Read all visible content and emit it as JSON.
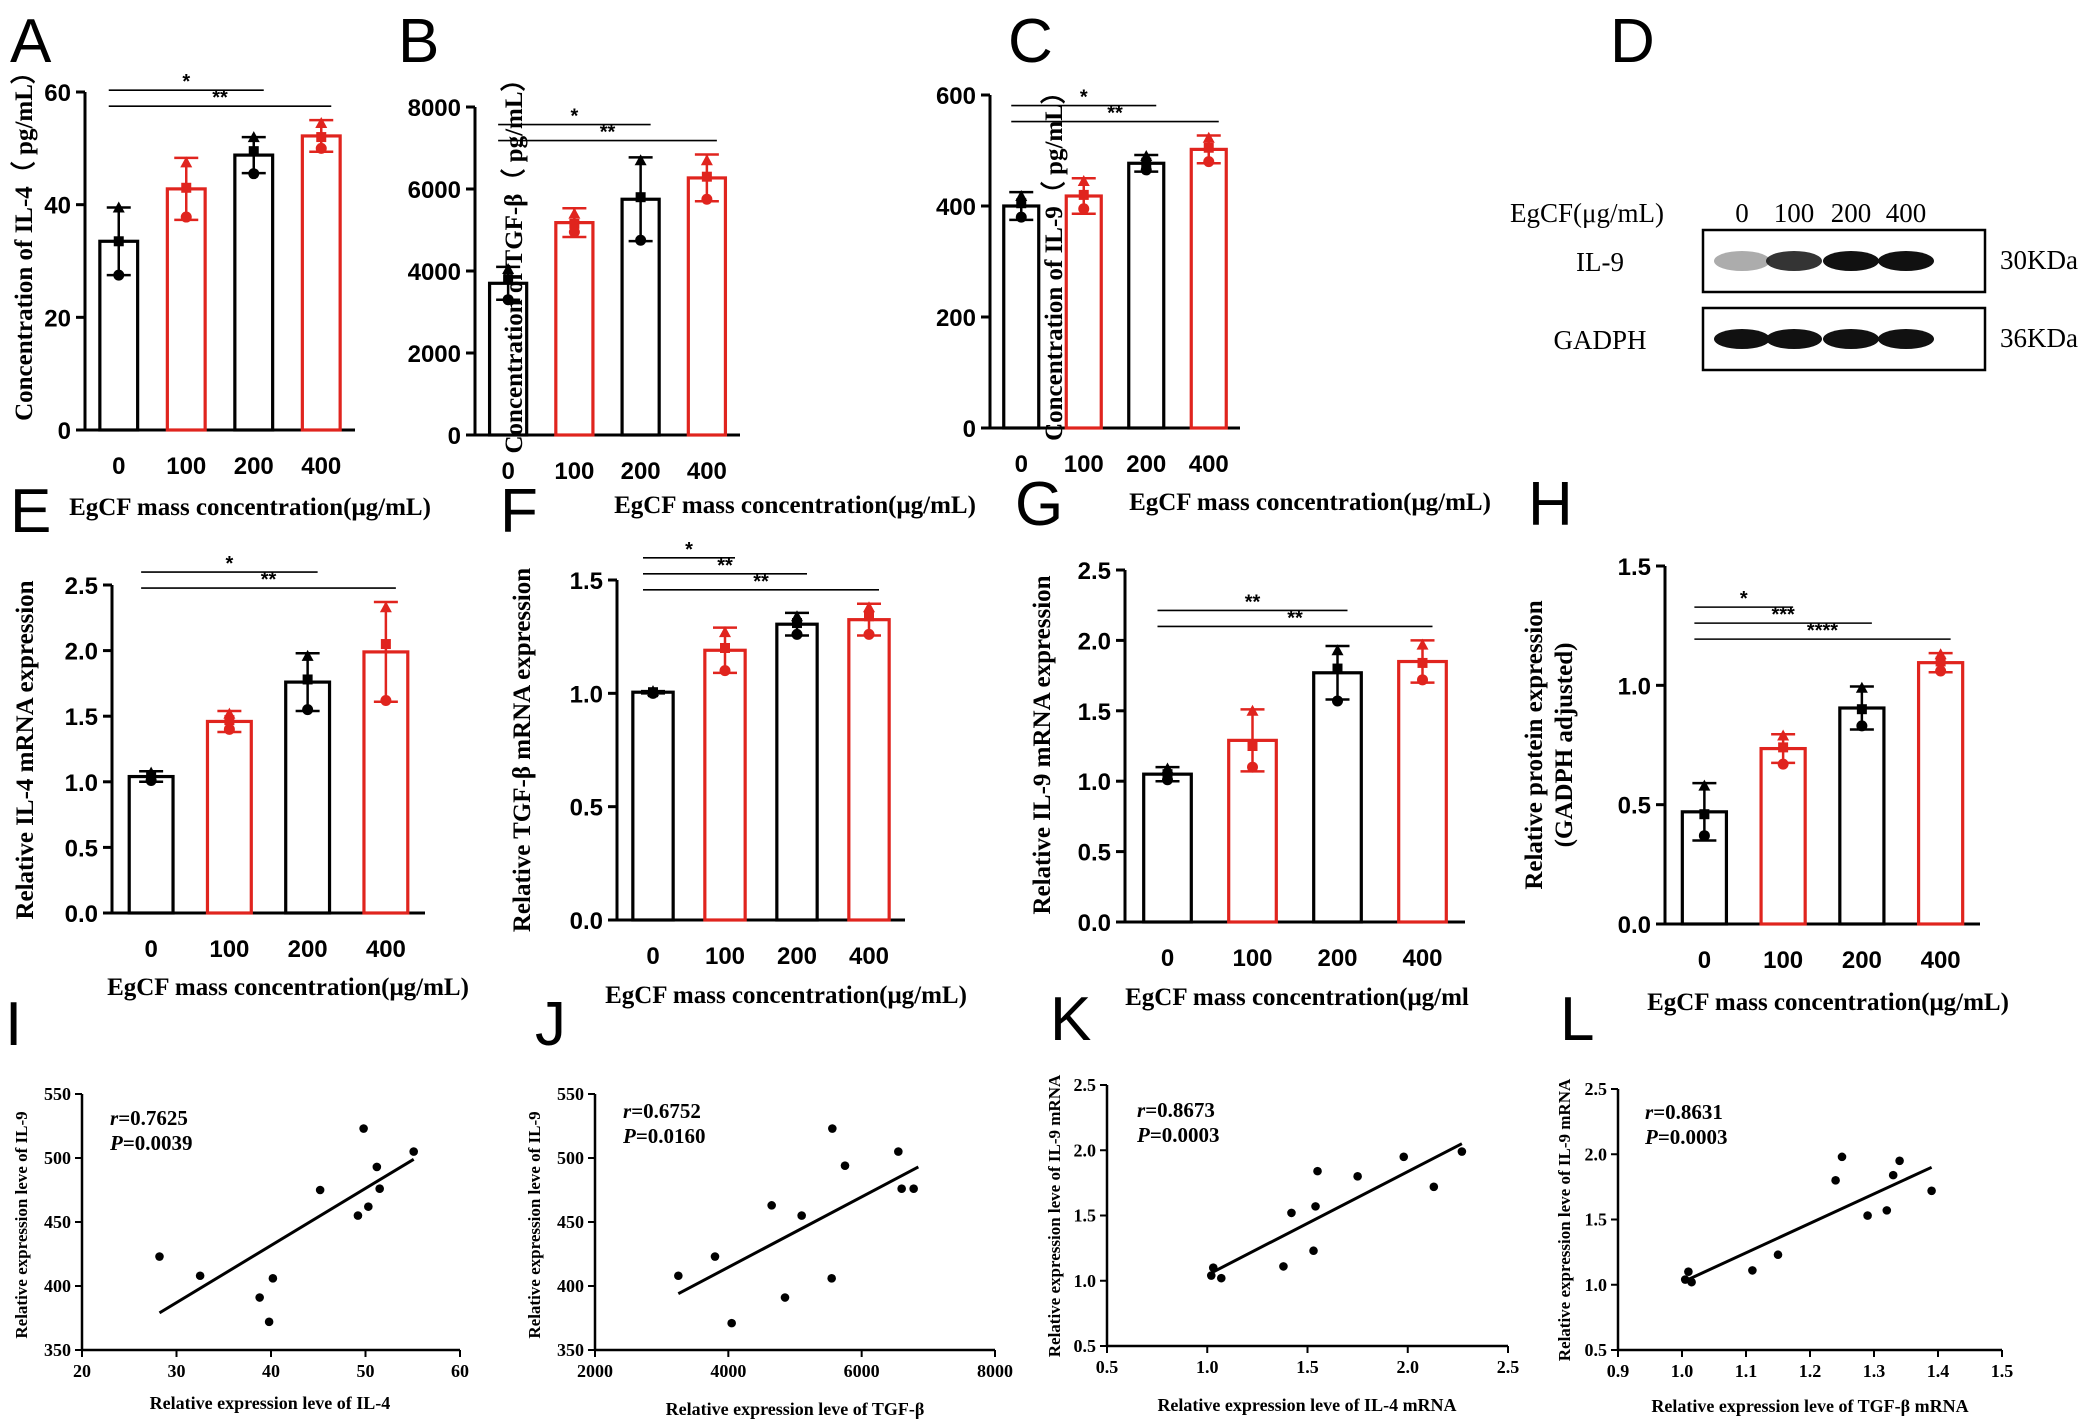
{
  "colors": {
    "black": "#000000",
    "red": "#e0241e"
  },
  "bar_x_categories": [
    "0",
    "100",
    "200",
    "400"
  ],
  "blot": {
    "panel": "D",
    "header_label": "EgCF(μg/mL)",
    "lanes": [
      "0",
      "100",
      "200",
      "400"
    ],
    "rows": [
      {
        "label": "IL-9",
        "size": "30KDa"
      },
      {
        "label": "GADPH",
        "size": "36KDa"
      }
    ]
  },
  "chart_data": [
    {
      "panel": "A",
      "type": "bar",
      "categories": [
        "0",
        "100",
        "200",
        "400"
      ],
      "values": [
        33.5,
        42.8,
        48.8,
        52.2
      ],
      "errors": [
        6,
        5.5,
        3.2,
        2.8
      ],
      "points": [
        [
          27.5,
          33.5,
          39.5
        ],
        [
          37.8,
          43,
          47.5
        ],
        [
          45.5,
          49.5,
          52
        ],
        [
          50,
          52,
          54.5
        ]
      ],
      "ylim": [
        0,
        60
      ],
      "yticks": [
        0,
        20,
        40,
        60
      ],
      "xlabel": "EgCF mass concentration(μg/mL)",
      "ylabel": "Concentration of IL-4（ pg/mL）",
      "significance": [
        {
          "from": 0,
          "to": 2,
          "label": "*"
        },
        {
          "from": 0,
          "to": 3,
          "label": "**"
        }
      ]
    },
    {
      "panel": "B",
      "type": "bar",
      "categories": [
        "0",
        "100",
        "200",
        "400"
      ],
      "values": [
        3700,
        5180,
        5750,
        6270
      ],
      "errors": [
        400,
        350,
        1020,
        570
      ],
      "points": [
        [
          3300,
          3800,
          4050
        ],
        [
          4950,
          5150,
          5400
        ],
        [
          4750,
          5800,
          6700
        ],
        [
          5750,
          6300,
          6700
        ]
      ],
      "ylim": [
        0,
        8000
      ],
      "yticks": [
        0,
        2000,
        4000,
        6000,
        8000
      ],
      "xlabel": "EgCF mass concentration(μg/mL)",
      "ylabel": "Concentration of TGF-β（ pg/mL）",
      "significance": [
        {
          "from": 0,
          "to": 2,
          "label": "*"
        },
        {
          "from": 0,
          "to": 3,
          "label": "**"
        }
      ]
    },
    {
      "panel": "C",
      "type": "bar",
      "categories": [
        "0",
        "100",
        "200",
        "400"
      ],
      "values": [
        400,
        418,
        477,
        502
      ],
      "errors": [
        25,
        32,
        15,
        25
      ],
      "points": [
        [
          380,
          405,
          418
        ],
        [
          395,
          420,
          445
        ],
        [
          465,
          478,
          490
        ],
        [
          480,
          505,
          523
        ]
      ],
      "ylim": [
        0,
        600
      ],
      "yticks": [
        0,
        200,
        400,
        600
      ],
      "xlabel": "EgCF mass concentration(μg/mL)",
      "ylabel": "Concentration of IL-9（ pg/mL）",
      "significance": [
        {
          "from": 0,
          "to": 2,
          "label": "*"
        },
        {
          "from": 0,
          "to": 3,
          "label": "**"
        }
      ]
    },
    {
      "panel": "E",
      "type": "bar",
      "categories": [
        "0",
        "100",
        "200",
        "400"
      ],
      "values": [
        1.04,
        1.46,
        1.76,
        1.99
      ],
      "errors": [
        0.04,
        0.08,
        0.22,
        0.38
      ],
      "points": [
        [
          1.01,
          1.04,
          1.07
        ],
        [
          1.4,
          1.47,
          1.52
        ],
        [
          1.55,
          1.78,
          1.96
        ],
        [
          1.62,
          2.05,
          2.33
        ]
      ],
      "ylim": [
        0,
        2.5
      ],
      "yticks": [
        "0.0",
        "0.5",
        "1.0",
        "1.5",
        "2.0",
        "2.5"
      ],
      "xlabel": "EgCF mass concentration(μg/mL)",
      "ylabel": "Relative IL-4 mRNA expression",
      "significance": [
        {
          "from": 0,
          "to": 2,
          "label": "*"
        },
        {
          "from": 0,
          "to": 3,
          "label": "**"
        }
      ]
    },
    {
      "panel": "F",
      "type": "bar",
      "categories": [
        "0",
        "100",
        "200",
        "400"
      ],
      "values": [
        1.005,
        1.19,
        1.305,
        1.325
      ],
      "errors": [
        0.005,
        0.1,
        0.05,
        0.07
      ],
      "points": [
        [
          1.0,
          1.005,
          1.01
        ],
        [
          1.1,
          1.2,
          1.27
        ],
        [
          1.26,
          1.31,
          1.34
        ],
        [
          1.26,
          1.34,
          1.38
        ]
      ],
      "ylim": [
        0,
        1.5
      ],
      "yticks": [
        "0.0",
        "0.5",
        "1.0",
        "1.5"
      ],
      "xlabel": "EgCF mass concentration(μg/mL)",
      "ylabel": "Relative TGF-β mRNA expression",
      "significance": [
        {
          "from": 0,
          "to": 1,
          "label": "*"
        },
        {
          "from": 0,
          "to": 2,
          "label": "**"
        },
        {
          "from": 0,
          "to": 3,
          "label": "**"
        }
      ]
    },
    {
      "panel": "G",
      "type": "bar",
      "categories": [
        "0",
        "100",
        "200",
        "400"
      ],
      "values": [
        1.05,
        1.29,
        1.77,
        1.85
      ],
      "errors": [
        0.05,
        0.22,
        0.19,
        0.15
      ],
      "points": [
        [
          1.01,
          1.05,
          1.09
        ],
        [
          1.1,
          1.25,
          1.5
        ],
        [
          1.57,
          1.8,
          1.93
        ],
        [
          1.72,
          1.84,
          1.97
        ]
      ],
      "ylim": [
        0,
        2.5
      ],
      "yticks": [
        "0.0",
        "0.5",
        "1.0",
        "1.5",
        "2.0",
        "2.5"
      ],
      "xlabel": "EgCF mass concentration(μg/ml",
      "ylabel": "Relative IL-9 mRNA expression",
      "significance": [
        {
          "from": 0,
          "to": 2,
          "label": "**"
        },
        {
          "from": 0,
          "to": 3,
          "label": "**"
        }
      ]
    },
    {
      "panel": "H",
      "type": "bar",
      "categories": [
        "0",
        "100",
        "200",
        "400"
      ],
      "values": [
        0.47,
        0.735,
        0.905,
        1.095
      ],
      "errors": [
        0.12,
        0.06,
        0.09,
        0.04
      ],
      "points": [
        [
          0.37,
          0.46,
          0.58
        ],
        [
          0.67,
          0.74,
          0.79
        ],
        [
          0.83,
          0.9,
          0.99
        ],
        [
          1.06,
          1.1,
          1.13
        ]
      ],
      "ylim": [
        0,
        1.5
      ],
      "yticks": [
        "0.0",
        "0.5",
        "1.0",
        "1.5"
      ],
      "xlabel": "EgCF mass concentration(μg/mL)",
      "ylabel": [
        "Relative protein expression",
        "(GADPH adjusted)"
      ],
      "significance": [
        {
          "from": 0,
          "to": 1,
          "label": "*"
        },
        {
          "from": 0,
          "to": 2,
          "label": "***"
        },
        {
          "from": 0,
          "to": 3,
          "label": "****"
        }
      ]
    },
    {
      "panel": "I",
      "type": "scatter",
      "x": [
        28.2,
        32.5,
        38.8,
        39.8,
        40.2,
        45.2,
        49.2,
        49.8,
        50.3,
        51.2,
        51.5,
        55.1
      ],
      "y": [
        423,
        408,
        391,
        372,
        406,
        475,
        455,
        523,
        462,
        493,
        476,
        505
      ],
      "fit_x": [
        28.2,
        55.1
      ],
      "fit_y": [
        379,
        499
      ],
      "xlim": [
        20,
        60
      ],
      "ylim": [
        350,
        550
      ],
      "xticks": [
        20,
        30,
        40,
        50,
        60
      ],
      "yticks": [
        350,
        400,
        450,
        500,
        550
      ],
      "xlabel": "Relative expression leve of IL-4",
      "ylabel": "Relative expression leve of   IL-9",
      "r_prefix": "r",
      "r_value": "=0.7625",
      "p_prefix": "P",
      "p_value": "=0.0039"
    },
    {
      "panel": "J",
      "type": "scatter",
      "x": [
        3250,
        3800,
        4050,
        4650,
        4850,
        5100,
        5550,
        5560,
        5750,
        6550,
        6600,
        6780
      ],
      "y": [
        408,
        423,
        371,
        463,
        391,
        455,
        406,
        523,
        494,
        505,
        476,
        476
      ],
      "fit_x": [
        3250,
        6850
      ],
      "fit_y": [
        394,
        493
      ],
      "xlim": [
        2000,
        8000
      ],
      "ylim": [
        350,
        550
      ],
      "xticks": [
        2000,
        4000,
        6000,
        8000
      ],
      "yticks": [
        350,
        400,
        450,
        500,
        550
      ],
      "xlabel": "Relative expression leve of TGF-β",
      "ylabel": "Relative expression leve of IL-9",
      "r_prefix": "r",
      "r_value": "=0.6752",
      "p_prefix": "P",
      "p_value": "=0.0160"
    },
    {
      "panel": "K",
      "type": "scatter",
      "x": [
        1.02,
        1.03,
        1.07,
        1.38,
        1.42,
        1.53,
        1.54,
        1.55,
        1.75,
        1.98,
        2.13,
        2.27
      ],
      "y": [
        1.04,
        1.1,
        1.02,
        1.11,
        1.52,
        1.23,
        1.57,
        1.84,
        1.8,
        1.95,
        1.72,
        1.99
      ],
      "fit_x": [
        1.02,
        2.27
      ],
      "fit_y": [
        1.06,
        2.05
      ],
      "xlim": [
        0.5,
        2.5
      ],
      "ylim": [
        0.5,
        2.5
      ],
      "xticks": [
        "0.5",
        "1.0",
        "1.5",
        "2.0",
        "2.5"
      ],
      "yticks": [
        "0.5",
        "1.0",
        "1.5",
        "2.0",
        "2.5"
      ],
      "xlabel": "Relative expression leve of IL-4 mRNA",
      "ylabel": "Relative expression leve of IL-9 mRNA",
      "r_prefix": "r",
      "r_value": "=0.8673",
      "p_prefix": "P",
      "p_value": "=0.0003"
    },
    {
      "panel": "L",
      "type": "scatter",
      "x": [
        1.005,
        1.01,
        1.015,
        1.11,
        1.15,
        1.24,
        1.25,
        1.29,
        1.32,
        1.33,
        1.34,
        1.39
      ],
      "y": [
        1.04,
        1.1,
        1.02,
        1.11,
        1.23,
        1.8,
        1.98,
        1.53,
        1.57,
        1.84,
        1.95,
        1.72
      ],
      "fit_x": [
        1.005,
        1.39
      ],
      "fit_y": [
        1.03,
        1.9
      ],
      "xlim": [
        0.9,
        1.5
      ],
      "ylim": [
        0.5,
        2.5
      ],
      "xticks": [
        "0.9",
        "1.0",
        "1.1",
        "1.2",
        "1.3",
        "1.4",
        "1.5"
      ],
      "yticks": [
        "0.5",
        "1.0",
        "1.5",
        "2.0",
        "2.5"
      ],
      "xlabel": "Relative expression leve of TGF-β mRNA",
      "ylabel": "Relative expression leve of IL-9 mRNA",
      "r_prefix": "r",
      "r_value": "=0.8631",
      "p_prefix": "P",
      "p_value": "=0.0003"
    }
  ]
}
